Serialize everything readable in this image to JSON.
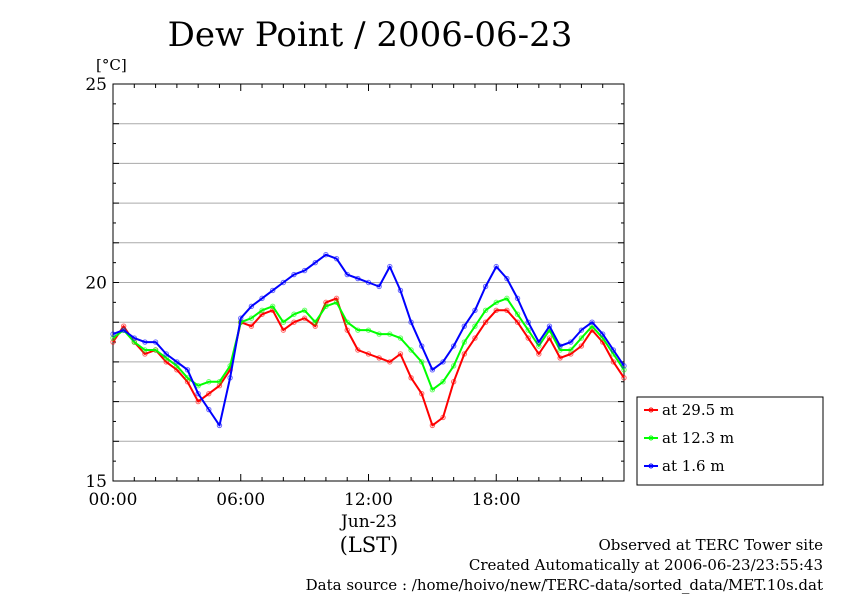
{
  "chart_data": {
    "type": "line",
    "title": "Dew Point / 2006-06-23",
    "ylabel": "[°C]",
    "xlabel": "(LST)",
    "date_label": "Jun-23",
    "ylim": [
      15,
      25
    ],
    "xlim": [
      0,
      24
    ],
    "yticks": [
      "15",
      "20",
      "25"
    ],
    "xticks": [
      {
        "hour": 0,
        "label": "00:00"
      },
      {
        "hour": 6,
        "label": "06:00"
      },
      {
        "hour": 12,
        "label": "12:00"
      },
      {
        "hour": 18,
        "label": "18:00"
      }
    ],
    "grid": true,
    "legend_position": "right",
    "x": [
      0.0,
      0.5,
      1.0,
      1.5,
      2.0,
      2.5,
      3.0,
      3.5,
      4.0,
      4.5,
      5.0,
      5.5,
      6.0,
      6.5,
      7.0,
      7.5,
      8.0,
      8.5,
      9.0,
      9.5,
      10.0,
      10.5,
      11.0,
      11.5,
      12.0,
      12.5,
      13.0,
      13.5,
      14.0,
      14.5,
      15.0,
      15.5,
      16.0,
      16.5,
      17.0,
      17.5,
      18.0,
      18.5,
      19.0,
      19.5,
      20.0,
      20.5,
      21.0,
      21.5,
      22.0,
      22.5,
      23.0,
      23.5,
      24.0
    ],
    "series": [
      {
        "name": "at 29.5 m",
        "color": "#ff0000",
        "values": [
          18.5,
          18.9,
          18.5,
          18.2,
          18.3,
          18.0,
          17.8,
          17.5,
          17.0,
          17.2,
          17.4,
          17.8,
          19.0,
          18.9,
          19.2,
          19.3,
          18.8,
          19.0,
          19.1,
          18.9,
          19.5,
          19.6,
          18.8,
          18.3,
          18.2,
          18.1,
          18.0,
          18.2,
          17.6,
          17.2,
          16.4,
          16.6,
          17.5,
          18.2,
          18.6,
          19.0,
          19.3,
          19.3,
          19.0,
          18.6,
          18.2,
          18.6,
          18.1,
          18.2,
          18.4,
          18.8,
          18.5,
          18.0,
          17.6
        ]
      },
      {
        "name": "at 12.3 m",
        "color": "#00ff00",
        "values": [
          18.6,
          18.8,
          18.5,
          18.3,
          18.3,
          18.1,
          17.9,
          17.6,
          17.4,
          17.5,
          17.5,
          17.9,
          19.0,
          19.1,
          19.3,
          19.4,
          19.0,
          19.2,
          19.3,
          19.0,
          19.4,
          19.5,
          19.0,
          18.8,
          18.8,
          18.7,
          18.7,
          18.6,
          18.3,
          18.0,
          17.3,
          17.5,
          17.9,
          18.5,
          18.9,
          19.3,
          19.5,
          19.6,
          19.2,
          18.8,
          18.4,
          18.8,
          18.3,
          18.3,
          18.6,
          18.9,
          18.6,
          18.2,
          17.8
        ]
      },
      {
        "name": "at 1.6 m",
        "color": "#0000ff",
        "values": [
          18.7,
          18.8,
          18.6,
          18.5,
          18.5,
          18.2,
          18.0,
          17.8,
          17.2,
          16.8,
          16.4,
          17.6,
          19.1,
          19.4,
          19.6,
          19.8,
          20.0,
          20.2,
          20.3,
          20.5,
          20.7,
          20.6,
          20.2,
          20.1,
          20.0,
          19.9,
          20.4,
          19.8,
          19.0,
          18.4,
          17.8,
          18.0,
          18.4,
          18.9,
          19.3,
          19.9,
          20.4,
          20.1,
          19.6,
          19.0,
          18.5,
          18.9,
          18.4,
          18.5,
          18.8,
          19.0,
          18.7,
          18.3,
          17.9
        ]
      }
    ]
  },
  "footer": {
    "line1": "Observed at TERC Tower site",
    "line2": "Created Automatically at 2006-06-23/23:55:43",
    "line3": "Data source : /home/hoivo/new/TERC-data/sorted_data/MET.10s.dat"
  }
}
